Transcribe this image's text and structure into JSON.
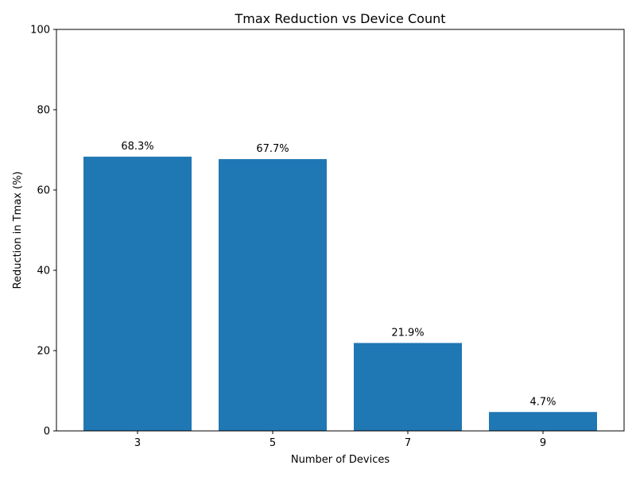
{
  "chart_data": {
    "type": "bar",
    "title": "Tmax Reduction vs Device Count",
    "xlabel": "Number of Devices",
    "ylabel": "Reduction in Tmax (%)",
    "categories": [
      "3",
      "5",
      "7",
      "9"
    ],
    "values": [
      68.3,
      67.7,
      21.9,
      4.7
    ],
    "data_labels": [
      "68.3%",
      "67.7%",
      "21.9%",
      "4.7%"
    ],
    "ylim": [
      0,
      100
    ],
    "yticks": [
      0,
      20,
      40,
      60,
      80,
      100
    ],
    "bar_color": "#1f77b4",
    "grid": false,
    "legend": "none"
  }
}
